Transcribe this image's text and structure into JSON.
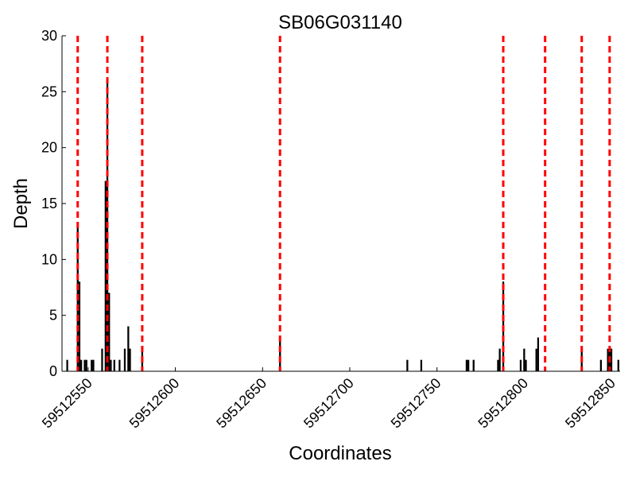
{
  "chart_data": {
    "type": "bar",
    "title": "SB06G031140",
    "xlabel": "Coordinates",
    "ylabel": "Depth",
    "xlim": [
      59512535,
      59512855
    ],
    "ylim": [
      0,
      30
    ],
    "xticks": [
      59512550,
      59512600,
      59512650,
      59512700,
      59512750,
      59512800,
      59512850
    ],
    "yticks": [
      0,
      5,
      10,
      15,
      20,
      25,
      30
    ],
    "grid": false,
    "bar_color": "#000000",
    "marker_color": "#ff0000",
    "points": [
      {
        "x": 59512538,
        "y": 1
      },
      {
        "x": 59512544,
        "y": 13
      },
      {
        "x": 59512545,
        "y": 8
      },
      {
        "x": 59512546,
        "y": 1
      },
      {
        "x": 59512548,
        "y": 1
      },
      {
        "x": 59512549,
        "y": 1
      },
      {
        "x": 59512552,
        "y": 1
      },
      {
        "x": 59512553,
        "y": 1
      },
      {
        "x": 59512558,
        "y": 2
      },
      {
        "x": 59512560,
        "y": 17
      },
      {
        "x": 59512561,
        "y": 26
      },
      {
        "x": 59512562,
        "y": 7
      },
      {
        "x": 59512563,
        "y": 1
      },
      {
        "x": 59512565,
        "y": 1
      },
      {
        "x": 59512568,
        "y": 1
      },
      {
        "x": 59512571,
        "y": 2
      },
      {
        "x": 59512573,
        "y": 4
      },
      {
        "x": 59512574,
        "y": 2
      },
      {
        "x": 59512581,
        "y": 2
      },
      {
        "x": 59512660,
        "y": 3
      },
      {
        "x": 59512733,
        "y": 1
      },
      {
        "x": 59512741,
        "y": 1
      },
      {
        "x": 59512767,
        "y": 1
      },
      {
        "x": 59512768,
        "y": 1
      },
      {
        "x": 59512771,
        "y": 1
      },
      {
        "x": 59512785,
        "y": 1
      },
      {
        "x": 59512786,
        "y": 2
      },
      {
        "x": 59512788,
        "y": 8
      },
      {
        "x": 59512798,
        "y": 1
      },
      {
        "x": 59512800,
        "y": 2
      },
      {
        "x": 59512801,
        "y": 1
      },
      {
        "x": 59512807,
        "y": 2
      },
      {
        "x": 59512808,
        "y": 3
      },
      {
        "x": 59512833,
        "y": 2
      },
      {
        "x": 59512844,
        "y": 1
      },
      {
        "x": 59512848,
        "y": 2
      },
      {
        "x": 59512849,
        "y": 2
      },
      {
        "x": 59512850,
        "y": 2
      },
      {
        "x": 59512854,
        "y": 1
      }
    ],
    "markers": [
      59512544,
      59512561,
      59512581,
      59512660,
      59512788,
      59512812,
      59512833,
      59512849
    ]
  }
}
